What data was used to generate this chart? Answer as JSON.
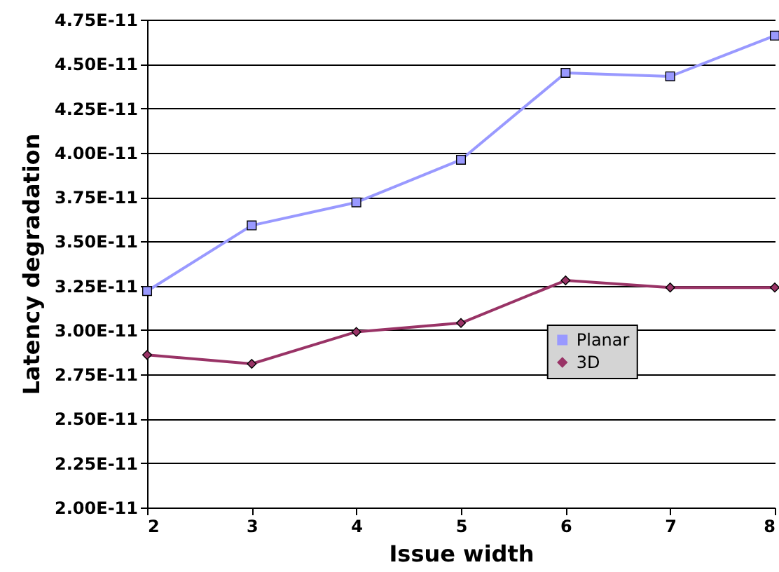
{
  "chart_data": {
    "type": "line",
    "xlabel": "Issue width",
    "ylabel": "Latency degradation",
    "x": [
      2,
      3,
      4,
      5,
      6,
      7,
      8
    ],
    "series": [
      {
        "name": "Planar",
        "color": "#9999ff",
        "marker": "square",
        "values": [
          3.22e-11,
          3.59e-11,
          3.72e-11,
          3.96e-11,
          4.45e-11,
          4.43e-11,
          4.66e-11
        ]
      },
      {
        "name": "3D",
        "color": "#993366",
        "marker": "diamond",
        "values": [
          2.86e-11,
          2.81e-11,
          2.99e-11,
          3.04e-11,
          3.28e-11,
          3.24e-11,
          3.24e-11
        ]
      }
    ],
    "xlim": [
      2,
      8
    ],
    "xticks": [
      2,
      3,
      4,
      5,
      6,
      7,
      8
    ],
    "ylim": [
      2e-11,
      4.75e-11
    ],
    "yticks": [
      {
        "value": 2e-11,
        "label": "2.00E-11"
      },
      {
        "value": 2.25e-11,
        "label": "2.25E-11"
      },
      {
        "value": 2.5e-11,
        "label": "2.50E-11"
      },
      {
        "value": 2.75e-11,
        "label": "2.75E-11"
      },
      {
        "value": 3e-11,
        "label": "3.00E-11"
      },
      {
        "value": 3.25e-11,
        "label": "3.25E-11"
      },
      {
        "value": 3.5e-11,
        "label": "3.50E-11"
      },
      {
        "value": 3.75e-11,
        "label": "3.75E-11"
      },
      {
        "value": 4e-11,
        "label": "4.00E-11"
      },
      {
        "value": 4.25e-11,
        "label": "4.25E-11"
      },
      {
        "value": 4.5e-11,
        "label": "4.50E-11"
      },
      {
        "value": 4.75e-11,
        "label": "4.75E-11"
      }
    ],
    "grid": "y",
    "legend": "right",
    "line_style": "solid"
  }
}
